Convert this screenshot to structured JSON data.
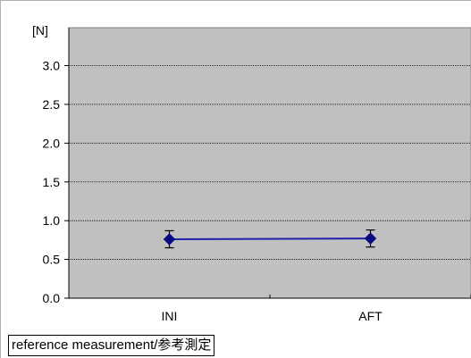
{
  "chart_data": {
    "type": "line",
    "title": "",
    "ylabel": "[N]",
    "xlabel": "",
    "categories": [
      "INI",
      "AFT"
    ],
    "series": [
      {
        "values": [
          0.76,
          0.77
        ],
        "error": [
          0.11,
          0.11
        ],
        "color": "#1f1fa8"
      }
    ],
    "ylim": [
      0.0,
      3.0
    ],
    "yticks": [
      "0.0",
      "0.5",
      "1.0",
      "1.5",
      "2.0",
      "2.5",
      "3.0"
    ],
    "grid": true,
    "plot_background": "#c0c0c0"
  },
  "caption": "reference measurement/参考測定"
}
